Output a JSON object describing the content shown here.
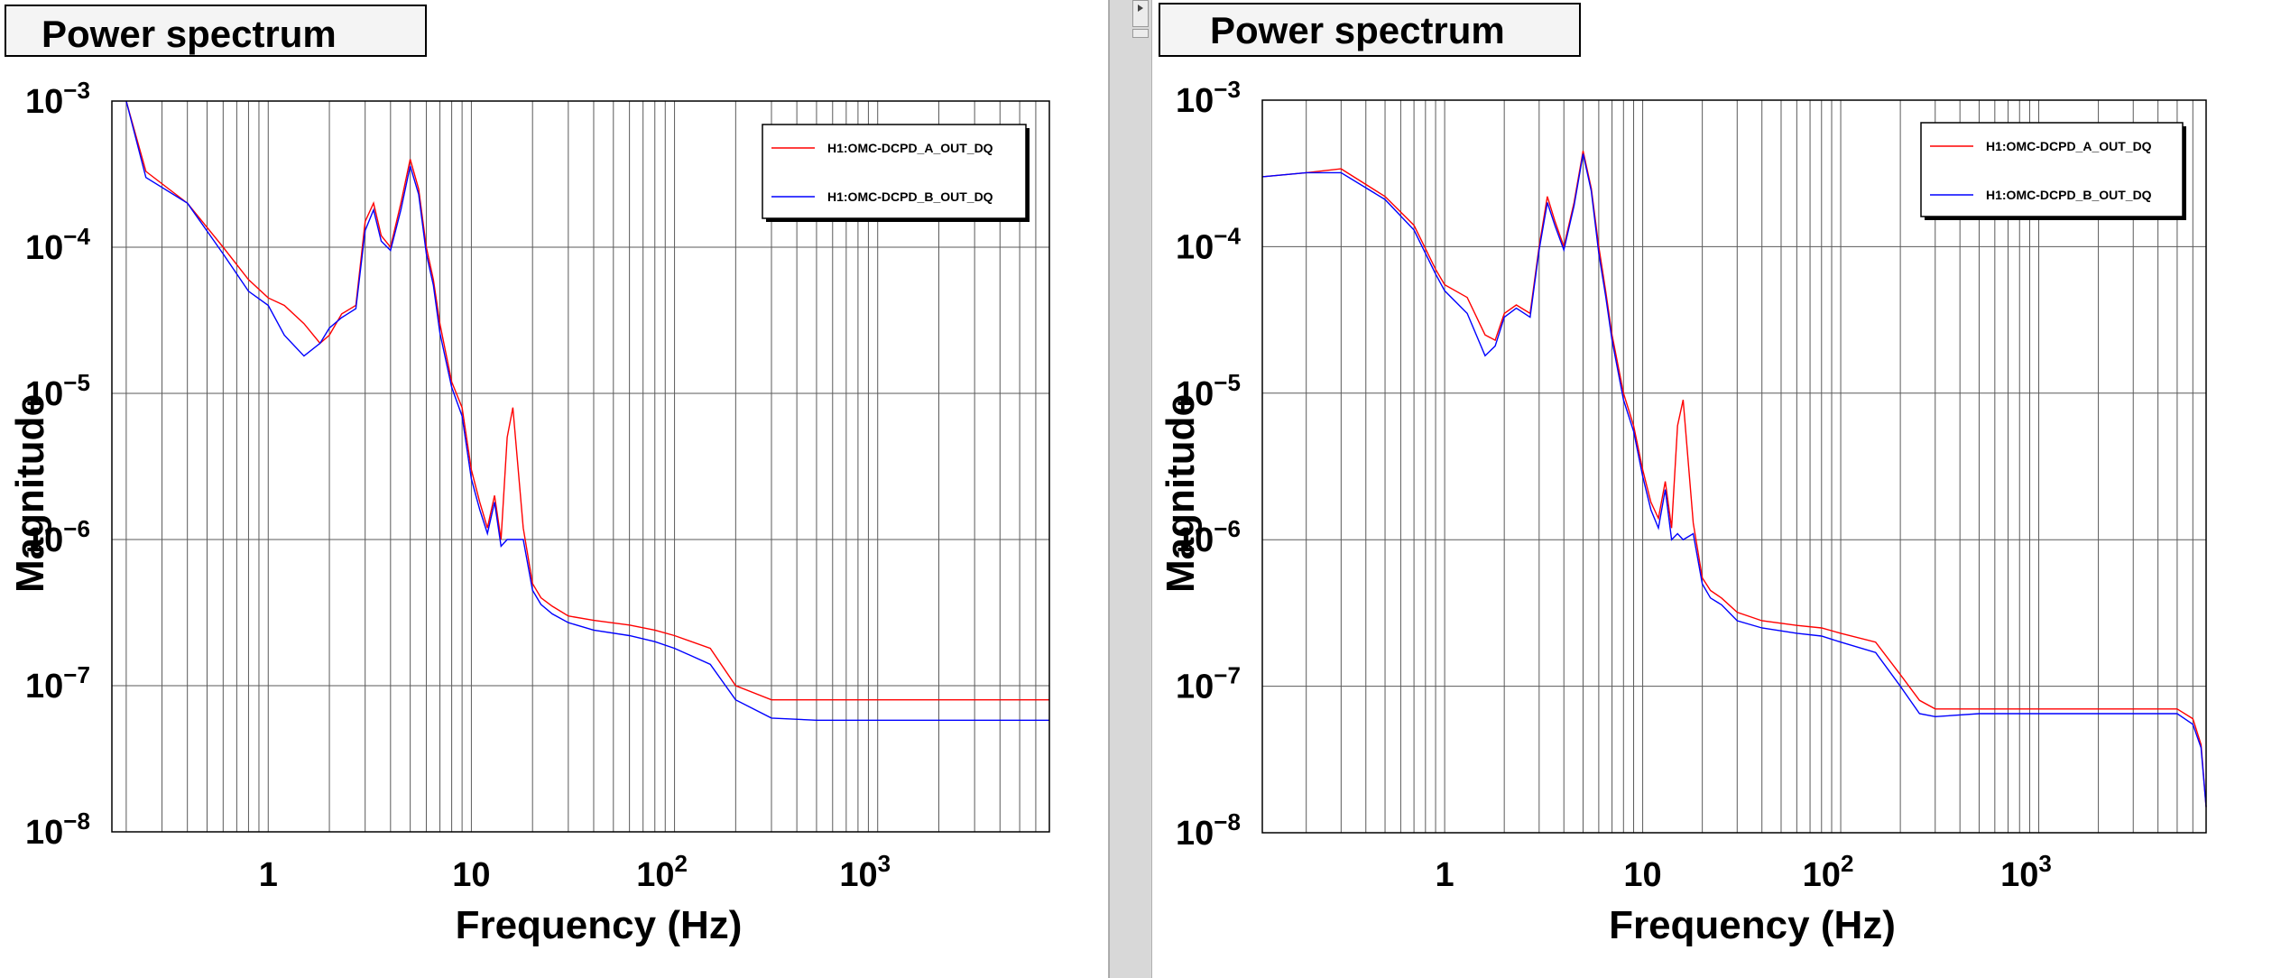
{
  "colors": {
    "series_a": "#ff0000",
    "series_b": "#0000ff"
  },
  "chart_data": [
    {
      "type": "line",
      "title": "Power spectrum",
      "xlabel": "Frequency (Hz)",
      "ylabel": "Magnitude",
      "xscale": "log",
      "yscale": "log",
      "xlim": [
        0.17,
        7000
      ],
      "ylim": [
        1e-08,
        0.001
      ],
      "grid": true,
      "legend_position": "top-right",
      "x_ticks": [
        {
          "base": "",
          "exp": "",
          "text": "1",
          "value": 1
        },
        {
          "base": "",
          "exp": "",
          "text": "10",
          "value": 10
        },
        {
          "base": "10",
          "exp": "2",
          "text": "",
          "value": 100
        },
        {
          "base": "10",
          "exp": "3",
          "text": "",
          "value": 1000
        }
      ],
      "y_ticks": [
        {
          "base": "10",
          "exp": "−3",
          "value": 0.001
        },
        {
          "base": "10",
          "exp": "−4",
          "value": 0.0001
        },
        {
          "base": "10",
          "exp": "−5",
          "value": 1e-05
        },
        {
          "base": "10",
          "exp": "−6",
          "value": 1e-06
        },
        {
          "base": "10",
          "exp": "−7",
          "value": 1e-07
        },
        {
          "base": "10",
          "exp": "−8",
          "value": 1e-08
        }
      ],
      "series": [
        {
          "name": "H1:OMC-DCPD_A_OUT_DQ",
          "color": "#ff0000",
          "x": [
            0.2,
            0.25,
            0.4,
            0.6,
            0.8,
            1.0,
            1.2,
            1.5,
            1.8,
            2.0,
            2.3,
            2.7,
            3.0,
            3.3,
            3.6,
            4.0,
            4.5,
            5.0,
            5.5,
            6.0,
            6.5,
            7.0,
            8.0,
            9.0,
            10.0,
            11.0,
            12.0,
            13.0,
            14.0,
            15.0,
            16.0,
            18.0,
            20.0,
            22.0,
            25.0,
            30.0,
            40.0,
            60.0,
            80.0,
            100.0,
            150.0,
            200.0,
            300.0,
            500.0,
            1000.0,
            2000.0,
            4000.0,
            7000.0
          ],
          "y": [
            0.001,
            0.00033,
            0.0002,
            0.0001,
            6e-05,
            4.5e-05,
            4e-05,
            3e-05,
            2.2e-05,
            2.5e-05,
            3.5e-05,
            4e-05,
            0.00015,
            0.0002,
            0.00012,
            0.0001,
            0.0002,
            0.0004,
            0.00025,
            0.0001,
            6e-05,
            3e-05,
            1.2e-05,
            8e-06,
            3e-06,
            1.8e-06,
            1.2e-06,
            2e-06,
            1e-06,
            5e-06,
            8e-06,
            1.2e-06,
            5e-07,
            4e-07,
            3.5e-07,
            3e-07,
            2.8e-07,
            2.6e-07,
            2.4e-07,
            2.2e-07,
            1.8e-07,
            1e-07,
            8e-08,
            8e-08,
            8e-08,
            8e-08,
            8e-08,
            8e-08
          ]
        },
        {
          "name": "H1:OMC-DCPD_B_OUT_DQ",
          "color": "#0000ff",
          "x": [
            0.2,
            0.25,
            0.4,
            0.6,
            0.8,
            1.0,
            1.2,
            1.5,
            1.8,
            2.0,
            2.3,
            2.7,
            3.0,
            3.3,
            3.6,
            4.0,
            4.5,
            5.0,
            5.5,
            6.0,
            6.5,
            7.0,
            8.0,
            9.0,
            10.0,
            11.0,
            12.0,
            13.0,
            14.0,
            15.0,
            16.0,
            18.0,
            20.0,
            22.0,
            25.0,
            30.0,
            40.0,
            60.0,
            80.0,
            100.0,
            150.0,
            200.0,
            300.0,
            500.0,
            1000.0,
            2000.0,
            4000.0,
            7000.0
          ],
          "y": [
            0.001,
            0.0003,
            0.0002,
            9e-05,
            5e-05,
            4e-05,
            2.5e-05,
            1.8e-05,
            2.2e-05,
            2.8e-05,
            3.3e-05,
            3.8e-05,
            0.00013,
            0.00018,
            0.00011,
            9.5e-05,
            0.00018,
            0.00036,
            0.00023,
            9e-05,
            5.5e-05,
            2.6e-05,
            1.1e-05,
            7e-06,
            2.6e-06,
            1.6e-06,
            1.1e-06,
            1.8e-06,
            9e-07,
            1e-06,
            1e-06,
            1e-06,
            4.5e-07,
            3.6e-07,
            3.1e-07,
            2.7e-07,
            2.4e-07,
            2.2e-07,
            2e-07,
            1.8e-07,
            1.4e-07,
            8e-08,
            6e-08,
            5.8e-08,
            5.8e-08,
            5.8e-08,
            5.8e-08,
            5.8e-08
          ]
        }
      ]
    },
    {
      "type": "line",
      "title": "Power spectrum",
      "xlabel": "Frequency (Hz)",
      "ylabel": "Magnitude",
      "xscale": "log",
      "yscale": "log",
      "xlim": [
        0.12,
        7000
      ],
      "ylim": [
        1e-08,
        0.001
      ],
      "grid": true,
      "legend_position": "top-right",
      "x_ticks": [
        {
          "base": "",
          "exp": "",
          "text": "1",
          "value": 1
        },
        {
          "base": "",
          "exp": "",
          "text": "10",
          "value": 10
        },
        {
          "base": "10",
          "exp": "2",
          "text": "",
          "value": 100
        },
        {
          "base": "10",
          "exp": "3",
          "text": "",
          "value": 1000
        }
      ],
      "y_ticks": [
        {
          "base": "10",
          "exp": "−3",
          "value": 0.001
        },
        {
          "base": "10",
          "exp": "−4",
          "value": 0.0001
        },
        {
          "base": "10",
          "exp": "−5",
          "value": 1e-05
        },
        {
          "base": "10",
          "exp": "−6",
          "value": 1e-06
        },
        {
          "base": "10",
          "exp": "−7",
          "value": 1e-07
        },
        {
          "base": "10",
          "exp": "−8",
          "value": 1e-08
        }
      ],
      "series": [
        {
          "name": "H1:OMC-DCPD_A_OUT_DQ",
          "color": "#ff0000",
          "x": [
            0.12,
            0.2,
            0.3,
            0.5,
            0.7,
            0.9,
            1.0,
            1.3,
            1.6,
            1.8,
            2.0,
            2.3,
            2.7,
            3.0,
            3.3,
            3.6,
            4.0,
            4.5,
            5.0,
            5.5,
            6.0,
            6.5,
            7.0,
            8.0,
            9.0,
            10.0,
            11.0,
            12.0,
            13.0,
            14.0,
            15.0,
            16.0,
            18.0,
            20.0,
            22.0,
            25.0,
            30.0,
            40.0,
            60.0,
            80.0,
            100.0,
            150.0,
            200.0,
            250.0,
            300.0,
            500.0,
            1000.0,
            2000.0,
            4000.0,
            5000.0,
            6000.0,
            6600.0,
            7000.0
          ],
          "y": [
            0.0003,
            0.00032,
            0.00034,
            0.00022,
            0.00014,
            7e-05,
            5.5e-05,
            4.5e-05,
            2.5e-05,
            2.3e-05,
            3.5e-05,
            4e-05,
            3.5e-05,
            0.0001,
            0.00022,
            0.00015,
            0.0001,
            0.0002,
            0.00045,
            0.00025,
            0.0001,
            5e-05,
            2.5e-05,
            1e-05,
            6e-06,
            3e-06,
            1.8e-06,
            1.4e-06,
            2.5e-06,
            1.2e-06,
            6e-06,
            9e-06,
            1.3e-06,
            5.5e-07,
            4.5e-07,
            4e-07,
            3.2e-07,
            2.8e-07,
            2.6e-07,
            2.5e-07,
            2.3e-07,
            2e-07,
            1.2e-07,
            8e-08,
            7e-08,
            7e-08,
            7e-08,
            7e-08,
            7e-08,
            7e-08,
            6e-08,
            4e-08,
            1.5e-08
          ]
        },
        {
          "name": "H1:OMC-DCPD_B_OUT_DQ",
          "color": "#0000ff",
          "x": [
            0.12,
            0.2,
            0.3,
            0.5,
            0.7,
            0.9,
            1.0,
            1.3,
            1.6,
            1.8,
            2.0,
            2.3,
            2.7,
            3.0,
            3.3,
            3.6,
            4.0,
            4.5,
            5.0,
            5.5,
            6.0,
            6.5,
            7.0,
            8.0,
            9.0,
            10.0,
            11.0,
            12.0,
            13.0,
            14.0,
            15.0,
            16.0,
            18.0,
            20.0,
            22.0,
            25.0,
            30.0,
            40.0,
            60.0,
            80.0,
            100.0,
            150.0,
            200.0,
            250.0,
            300.0,
            500.0,
            1000.0,
            2000.0,
            4000.0,
            5000.0,
            6000.0,
            6600.0,
            7000.0
          ],
          "y": [
            0.0003,
            0.00032,
            0.00032,
            0.00021,
            0.00013,
            6.5e-05,
            5e-05,
            3.5e-05,
            1.8e-05,
            2.1e-05,
            3.3e-05,
            3.8e-05,
            3.3e-05,
            9.5e-05,
            0.0002,
            0.00014,
            9.5e-05,
            0.00019,
            0.00043,
            0.00024,
            9e-05,
            4.6e-05,
            2.3e-05,
            9e-06,
            5.5e-06,
            2.7e-06,
            1.6e-06,
            1.2e-06,
            2.2e-06,
            1e-06,
            1.1e-06,
            1e-06,
            1.1e-06,
            5e-07,
            4e-07,
            3.6e-07,
            2.8e-07,
            2.5e-07,
            2.3e-07,
            2.2e-07,
            2e-07,
            1.7e-07,
            1e-07,
            6.5e-08,
            6.2e-08,
            6.5e-08,
            6.5e-08,
            6.5e-08,
            6.5e-08,
            6.5e-08,
            5.5e-08,
            3.8e-08,
            1.5e-08
          ]
        }
      ]
    }
  ]
}
